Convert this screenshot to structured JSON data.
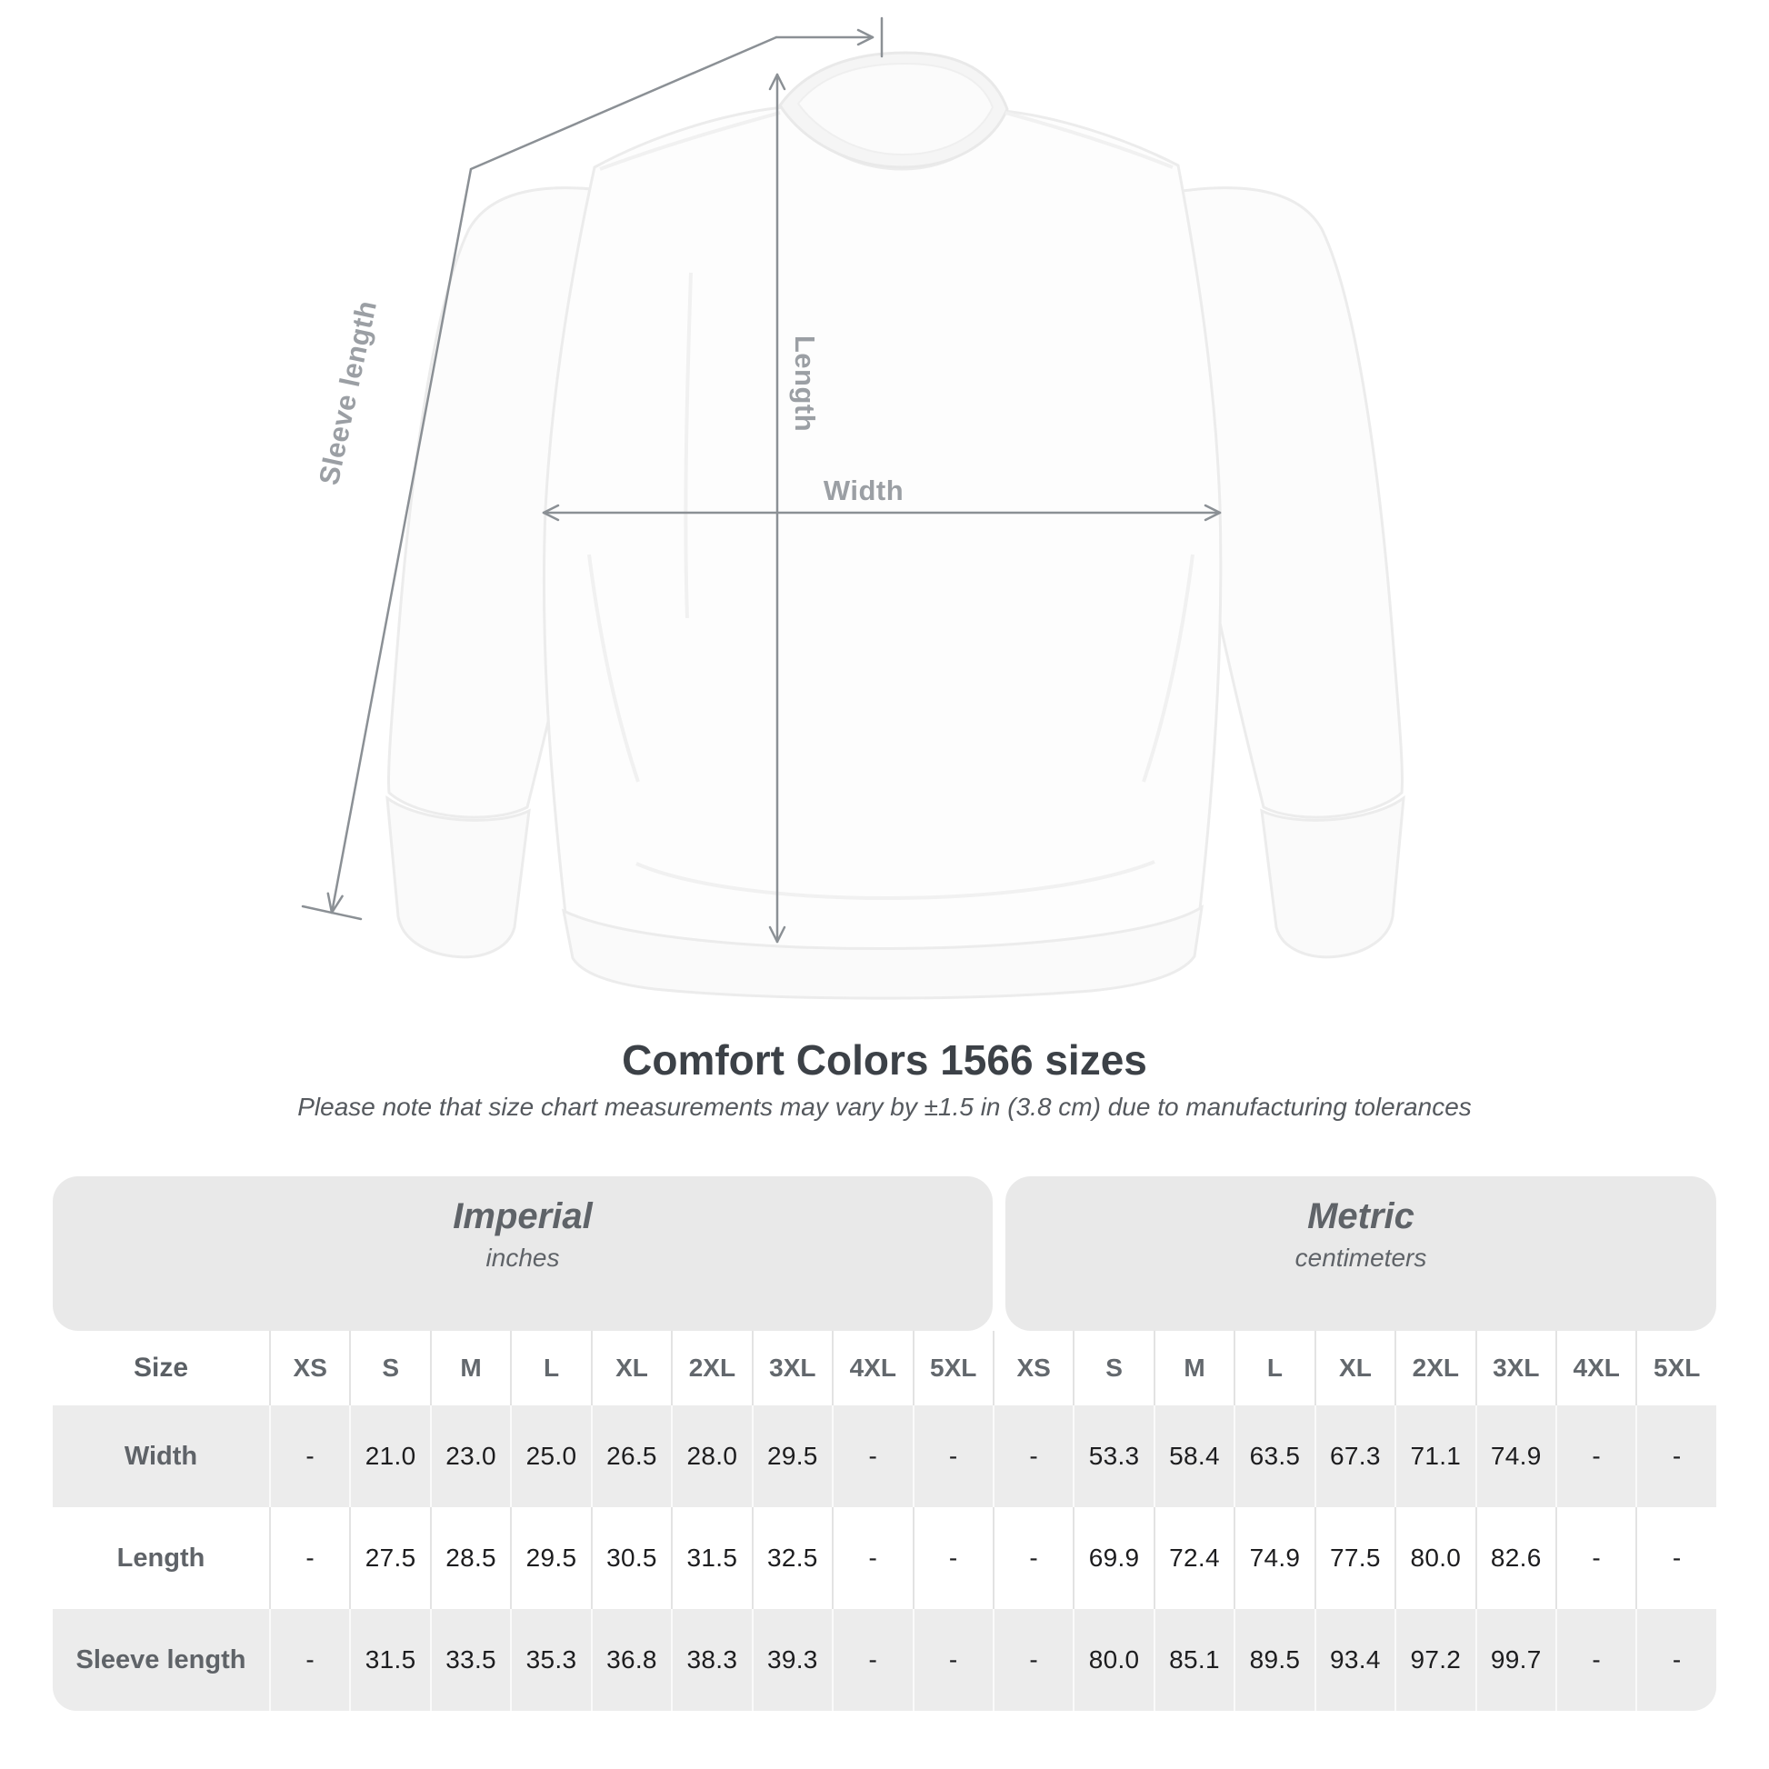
{
  "diagram": {
    "labels": {
      "length": "Length",
      "width": "Width",
      "sleeve": "Sleeve length"
    }
  },
  "title": "Comfort Colors 1566 sizes",
  "subtitle": "Please note that size chart measurements may vary by ±1.5 in (3.8 cm) due to manufacturing tolerances",
  "table": {
    "unit_headers": [
      {
        "label": "Imperial",
        "sublabel": "inches"
      },
      {
        "label": "Metric",
        "sublabel": "centimeters"
      }
    ],
    "size_header": "Size",
    "sizes": [
      "XS",
      "S",
      "M",
      "L",
      "XL",
      "2XL",
      "3XL",
      "4XL",
      "5XL"
    ],
    "rows": [
      {
        "label": "Width",
        "imperial": [
          "-",
          "21.0",
          "23.0",
          "25.0",
          "26.5",
          "28.0",
          "29.5",
          "-",
          "-"
        ],
        "metric": [
          "-",
          "53.3",
          "58.4",
          "63.5",
          "67.3",
          "71.1",
          "74.9",
          "-",
          "-"
        ]
      },
      {
        "label": "Length",
        "imperial": [
          "-",
          "27.5",
          "28.5",
          "29.5",
          "30.5",
          "31.5",
          "32.5",
          "-",
          "-"
        ],
        "metric": [
          "-",
          "69.9",
          "72.4",
          "74.9",
          "77.5",
          "80.0",
          "82.6",
          "-",
          "-"
        ]
      },
      {
        "label": "Sleeve length",
        "imperial": [
          "-",
          "31.5",
          "33.5",
          "35.3",
          "36.8",
          "38.3",
          "39.3",
          "-",
          "-"
        ],
        "metric": [
          "-",
          "80.0",
          "85.1",
          "89.5",
          "93.4",
          "97.2",
          "99.7",
          "-",
          "-"
        ]
      }
    ]
  }
}
